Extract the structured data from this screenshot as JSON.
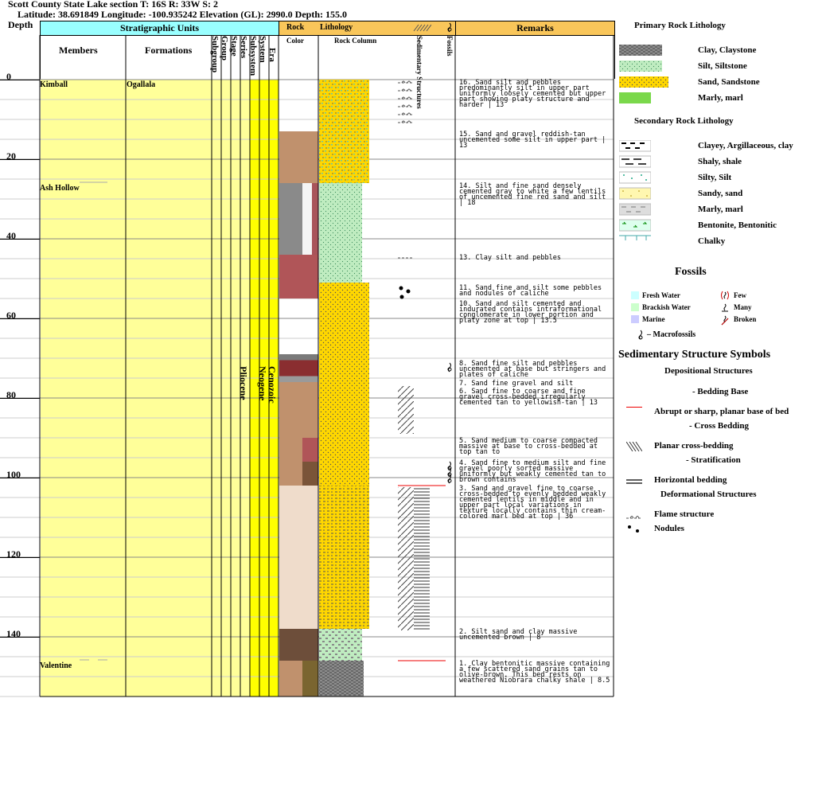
{
  "header": {
    "title": "Scott County State Lake section T: 16S R: 33W S: 2",
    "coords": "Latitude: 38.691849 Longitude: -100.935242 Elevation (GL): 2990.0 Depth: 155.0"
  },
  "columns": {
    "depth": "Depth",
    "strat_units": "Stratigraphic Units",
    "members": "Members",
    "formations": "Formations",
    "subgroup": "Subgroup",
    "group": "Group",
    "stage": "Stage",
    "series": "Series",
    "subsystem": "Subsystem",
    "system": "System",
    "era": "Era",
    "rock": "Rock",
    "color": "Color",
    "lithology": "Lithology",
    "rock_column": "Rock Column",
    "sedimentary_structures": "Sedimentary Structures",
    "fossils": "Fossils",
    "remarks": "Remarks"
  },
  "depth_ticks": [
    "0",
    "20",
    "40",
    "60",
    "80",
    "100",
    "120",
    "140"
  ],
  "members": [
    {
      "label": "Kimball",
      "depth": 0
    },
    {
      "label": "Ash Hollow",
      "depth": 26
    },
    {
      "label": "Valentine",
      "depth": 146
    }
  ],
  "formation": "Ogallala",
  "series_label": "Pliocene",
  "system_label": "Neogene",
  "era_label": "Cenozoic",
  "color_intervals": [
    {
      "from": 13,
      "to": 26,
      "color": "#c0916d"
    },
    {
      "from": 26,
      "to": 44,
      "color": "#8a8a8a"
    },
    {
      "from": 26,
      "to": 44,
      "color": "#f4f4f4",
      "part": "middle"
    },
    {
      "from": 26,
      "to": 44,
      "color": "#a9545a",
      "part": "right"
    },
    {
      "from": 44,
      "to": 55,
      "color": "#b05558"
    },
    {
      "from": 69,
      "to": 70.5,
      "color": "#7a7a7a"
    },
    {
      "from": 70.5,
      "to": 74.5,
      "color": "#8a2e30"
    },
    {
      "from": 74.5,
      "to": 77,
      "color": "#9a9a9a"
    },
    {
      "from": 76,
      "to": 90,
      "color": "#c0916d"
    },
    {
      "from": 90,
      "to": 96,
      "color": "#c0916d"
    },
    {
      "from": 90,
      "to": 96,
      "color": "#b05558",
      "part": "right"
    },
    {
      "from": 96,
      "to": 102,
      "color": "#c0916d"
    },
    {
      "from": 96,
      "to": 102,
      "color": "#7a5438",
      "part": "right"
    },
    {
      "from": 102,
      "to": 138,
      "color": "#efdccb"
    },
    {
      "from": 138,
      "to": 146,
      "color": "#6d4e3a"
    },
    {
      "from": 146,
      "to": 155,
      "color": "#c0916d"
    },
    {
      "from": 146,
      "to": 155,
      "color": "#7a6530",
      "part": "right"
    }
  ],
  "lithology_intervals": [
    {
      "from": 0,
      "to": 26,
      "type": "sand-silt"
    },
    {
      "from": 26,
      "to": 44,
      "type": "silt"
    },
    {
      "from": 44,
      "to": 51,
      "type": "silt"
    },
    {
      "from": 51,
      "to": 102,
      "type": "sand"
    },
    {
      "from": 102,
      "to": 138,
      "type": "sand-gravel"
    },
    {
      "from": 138,
      "to": 146,
      "type": "silt-clay"
    },
    {
      "from": 146,
      "to": 155,
      "type": "clay"
    }
  ],
  "remarks": [
    {
      "depth": 0,
      "text": "16. Sand silt and pebbles predominantly silt in upper part uniformly loosely cemented but upper part showing platy structure and harder | 13"
    },
    {
      "depth": 13,
      "text": "15. Sand and gravel reddish-tan uncemented some silt in upper part | 13"
    },
    {
      "depth": 26,
      "text": "14. Silt and fine sand densely cemented gray to white a few lentils of uncemented fine red sand and silt | 18"
    },
    {
      "depth": 44,
      "text": "13. Clay silt and pebbles"
    },
    {
      "depth": 51.5,
      "text": "11. Sand fine and silt some pebbles and nodules of caliche"
    },
    {
      "depth": 55.5,
      "text": "10. Sand and silt cemented and indurated contains intraformational conglomerate in lower portion and platy zone at top | 13.5"
    },
    {
      "depth": 70.5,
      "text": "8. Sand fine silt and pebbles uncemented at base but stringers and plates of caliche"
    },
    {
      "depth": 75.5,
      "text": "7. Sand fine gravel and silt"
    },
    {
      "depth": 77.5,
      "text": "6. Sand fine to coarse and fine gravel cross-bedded irregularly cemented tan to yellowish-tan | 13"
    },
    {
      "depth": 90,
      "text": "5. Sand medium to coarse compacted massive at base to cross-bedded at top tan to"
    },
    {
      "depth": 95.5,
      "text": "4. Sand fine to medium silt and fine gravel poorly sorted massive uniformly but weakly cemented tan to brown contains"
    },
    {
      "depth": 102,
      "text": "3. Sand and gravel fine to coarse cross-bedded to evenly bedded weakly cemented lentils in middle and in upper part local variations in texture locally contains thin cream-colored marl bed at top | 36"
    },
    {
      "depth": 138,
      "text": "2. Silt sand and clay massive uncemented brown | 8"
    },
    {
      "depth": 146,
      "text": "1. Clay bentonitic massive containing a few scattered sand grains tan to olive-brown. This bed rests on weathered Niobrara chalky shale | 8.5"
    }
  ],
  "legend": {
    "primary_title": "Primary Rock Lithology",
    "primary": [
      "Clay, Claystone",
      "Silt, Siltstone",
      "Sand, Sandstone",
      "Marly, marl"
    ],
    "secondary_title": "Secondary Rock Lithology",
    "secondary": [
      "Clayey, Argillaceous, clay",
      "Shaly, shale",
      "Silty, Silt",
      "Sandy, sand",
      "Marly, marl",
      "Bentonite, Bentonitic",
      "Chalky"
    ],
    "fossils_title": "Fossils",
    "fossil_env": [
      "Fresh Water",
      "Brackish Water",
      "Marine"
    ],
    "fossil_abund": [
      "Few",
      "Many",
      "Broken"
    ],
    "macrofossils": "– Macrofossils",
    "sed_title": "Sedimentary Structure Symbols",
    "depositional": "Depositional Structures",
    "bedding_base": "- Bedding Base",
    "abrupt": "Abrupt or sharp, planar base of bed",
    "cross_bedding": "- Cross Bedding",
    "planar_cross": "Planar cross-bedding",
    "stratification": "- Stratification",
    "horizontal": "Horizontal bedding",
    "deformational": "Deformational Structures",
    "flame": "Flame structure",
    "nodules": "Nodules"
  },
  "colors": {
    "header_cyan": "#99ffff",
    "header_orange": "#f9c65a",
    "strat_yellow": "#ffff99",
    "series_yellow": "#ffff00",
    "sand": "#ffd700",
    "silt": "#bfecc0",
    "clay": "#8c8c8c"
  }
}
